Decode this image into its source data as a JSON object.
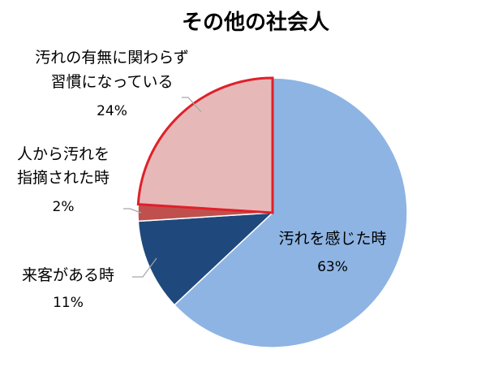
{
  "chart_data": {
    "type": "pie",
    "title": "その他の社会人",
    "slices": [
      {
        "label_lines": [
          "汚れを感じた時"
        ],
        "percent_label": "63%",
        "value": 63,
        "color": "#8eb4e3",
        "stroke": "#ffffff",
        "highlight": false
      },
      {
        "label_lines": [
          "来客がある時"
        ],
        "percent_label": "11%",
        "value": 11,
        "color": "#1f497d",
        "stroke": "#ffffff",
        "highlight": false
      },
      {
        "label_lines": [
          "人から汚れを",
          "指摘された時"
        ],
        "percent_label": "2%",
        "value": 2,
        "color": "#c0504d",
        "stroke": "#ffffff",
        "highlight": false
      },
      {
        "label_lines": [
          "汚れの有無に関わらず",
          "習慣になっている"
        ],
        "percent_label": "24%",
        "value": 24,
        "color": "#e6b9b8",
        "stroke": "#e0202a",
        "highlight": true
      }
    ],
    "legend": "none"
  }
}
